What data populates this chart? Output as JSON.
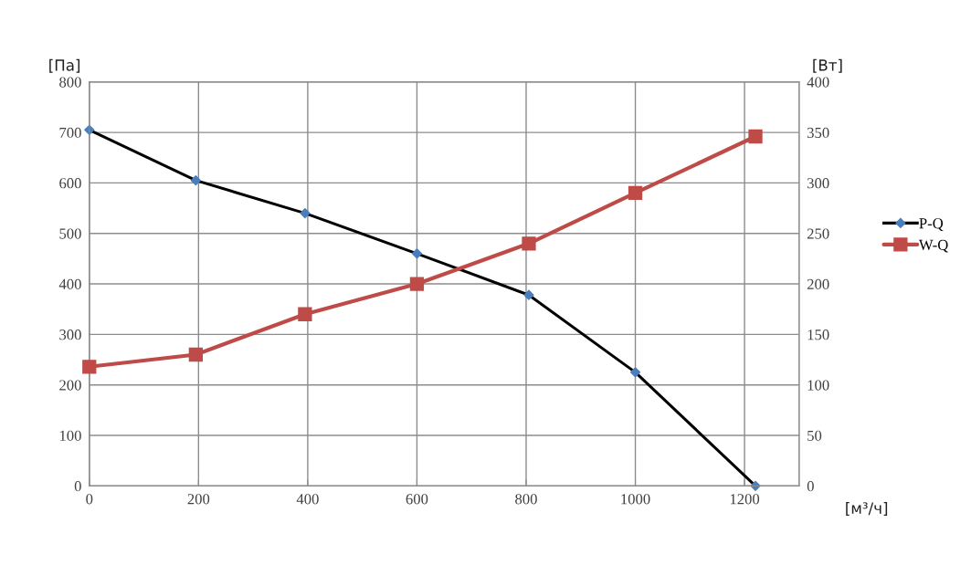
{
  "chart_data": {
    "type": "line",
    "ylabel": "[Па]",
    "y2label": "[Вт]",
    "xlabel": "[м³/ч]",
    "xlim": [
      0,
      1300
    ],
    "xticks": [
      0,
      200,
      400,
      600,
      800,
      1000,
      1200
    ],
    "ylim": [
      0,
      800
    ],
    "yticks": [
      0,
      100,
      200,
      300,
      400,
      500,
      600,
      700,
      800
    ],
    "y2lim": [
      0,
      400
    ],
    "y2ticks": [
      0,
      50,
      100,
      150,
      200,
      250,
      300,
      350,
      400
    ],
    "grid": true,
    "legend": "right",
    "series": [
      {
        "name": "P-Q",
        "color": "#000000",
        "colors": [
          "#4a7ebb",
          "#4a7ebb",
          "#4a7ebb",
          "#4a7ebb",
          "#4a7ebb",
          "#4a7ebb",
          "#4a7ebb"
        ],
        "marker": "diamond",
        "x": [
          0,
          195,
          395,
          600,
          805,
          1000,
          1220
        ],
        "values": [
          705,
          605,
          540,
          460,
          378,
          225,
          0
        ]
      },
      {
        "name": "W-Q",
        "color": "#be4b48",
        "marker": "square",
        "axis": "y2",
        "x": [
          0,
          195,
          395,
          600,
          805,
          1000,
          1220
        ],
        "values": [
          118,
          130,
          170,
          200,
          240,
          290,
          346
        ]
      }
    ]
  }
}
